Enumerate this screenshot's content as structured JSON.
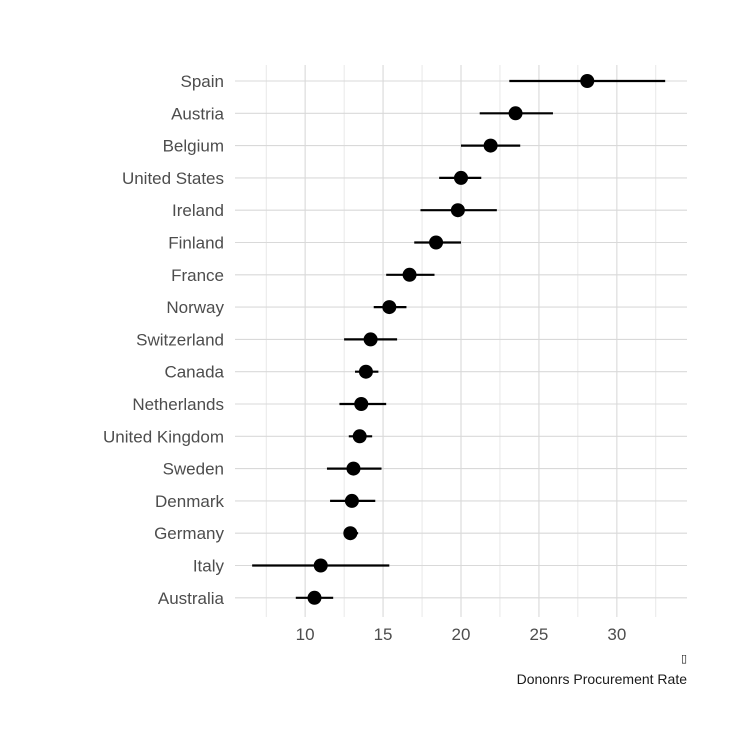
{
  "chart_data": {
    "type": "scatter",
    "subtype": "dot-and-whisker",
    "title": "",
    "xlabel": "Dononrs Procurement Rate",
    "xlabel_glyph": "▯",
    "ylabel": "",
    "xlim": [
      5.5,
      34.5
    ],
    "xticks": [
      10,
      15,
      20,
      25,
      30
    ],
    "grid": true,
    "legend": "none",
    "point_color": "#000000",
    "grid_color": "#d9d9d9",
    "categories": [
      "Spain",
      "Austria",
      "Belgium",
      "United States",
      "Ireland",
      "Finland",
      "France",
      "Norway",
      "Switzerland",
      "Canada",
      "Netherlands",
      "United Kingdom",
      "Sweden",
      "Denmark",
      "Germany",
      "Italy",
      "Australia"
    ],
    "values": [
      28.1,
      23.5,
      21.9,
      20.0,
      19.8,
      18.4,
      16.7,
      15.4,
      14.2,
      13.9,
      13.6,
      13.5,
      13.1,
      13.0,
      12.9,
      11.0,
      10.6
    ],
    "lower": [
      23.1,
      21.2,
      20.0,
      18.6,
      17.4,
      17.0,
      15.2,
      14.4,
      12.5,
      13.2,
      12.2,
      12.8,
      11.4,
      11.6,
      12.5,
      6.6,
      9.4
    ],
    "upper": [
      33.1,
      25.9,
      23.8,
      21.3,
      22.3,
      20.0,
      18.3,
      16.5,
      15.9,
      14.7,
      15.2,
      14.3,
      14.9,
      14.5,
      13.4,
      15.4,
      11.8
    ]
  }
}
